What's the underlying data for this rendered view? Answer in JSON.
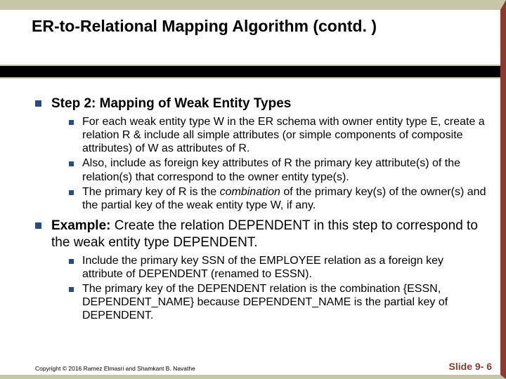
{
  "title": "ER-to-Relational Mapping Algorithm (contd. )",
  "step_heading_bold": "Step 2: Mapping of Weak Entity Types",
  "step_bullets": [
    "For each weak entity type W in the ER schema with owner entity type E, create a relation R & include all simple attributes (or simple components of composite attributes) of W as attributes of R.",
    "Also, include as foreign key attributes of R the primary key attribute(s) of the relation(s) that correspond to the owner entity type(s).",
    "The primary key of R is the <span class=\"italic\">combination</span> of the primary key(s) of the owner(s) and the partial key of the weak entity type W, if any."
  ],
  "example_label": "Example:",
  "example_text": " Create the relation DEPENDENT in this step to correspond to the weak entity type DEPENDENT.",
  "example_bullets": [
    "Include the primary key SSN of the EMPLOYEE relation as a foreign key attribute of DEPENDENT (renamed to ESSN).",
    "The primary key of the DEPENDENT relation is the combination {ESSN, DEPENDENT_NAME} because DEPENDENT_NAME is the partial key of DEPENDENT."
  ],
  "copyright": "Copyright © 2016 Ramez Elmasri and Shamkant B. Navathe",
  "slide_number": "Slide 9- 6",
  "colors": {
    "border_tan": "#c5c5a8",
    "border_maroon": "#8b3a2f",
    "bullet_blue": "#2a4c7a",
    "black_bar": "#000000"
  }
}
